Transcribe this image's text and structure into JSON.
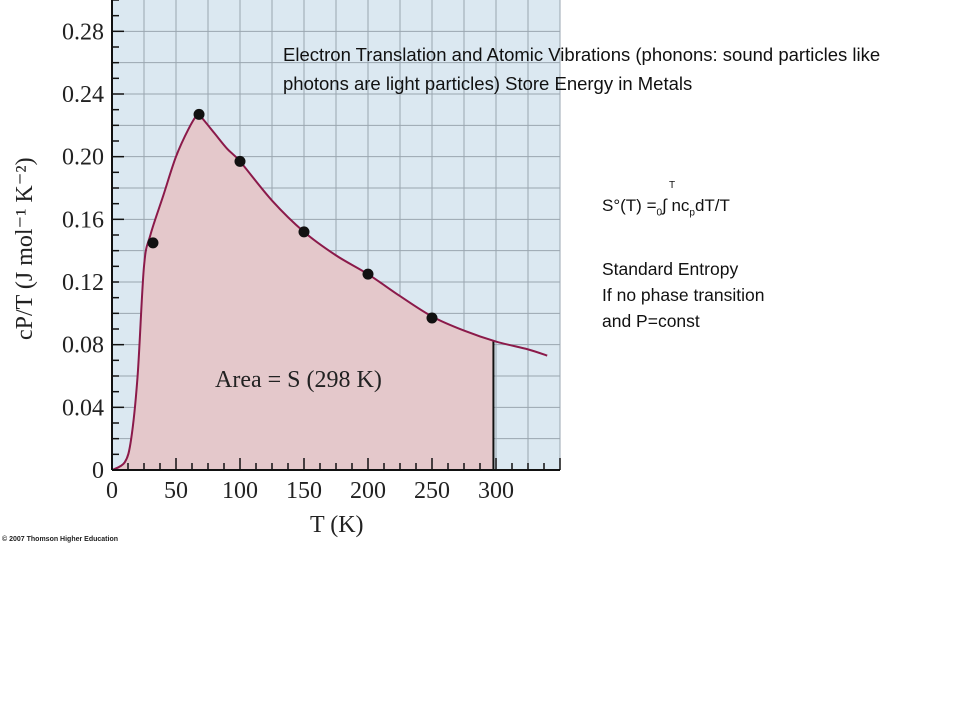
{
  "chart_data": {
    "type": "line",
    "x": [
      0,
      10,
      15,
      20,
      25,
      30,
      40,
      50,
      60,
      67,
      70,
      80,
      90,
      100,
      125,
      150,
      175,
      200,
      225,
      250,
      275,
      300,
      325,
      340
    ],
    "y": [
      0,
      0.005,
      0.02,
      0.06,
      0.13,
      0.15,
      0.175,
      0.2,
      0.218,
      0.227,
      0.225,
      0.215,
      0.205,
      0.197,
      0.172,
      0.152,
      0.137,
      0.125,
      0.111,
      0.098,
      0.089,
      0.082,
      0.077,
      0.073
    ],
    "points": {
      "x": [
        32,
        68,
        100,
        150,
        200,
        250
      ],
      "y": [
        0.145,
        0.227,
        0.197,
        0.152,
        0.125,
        0.097
      ]
    },
    "shaded_range": [
      0,
      298
    ],
    "xlim": [
      0,
      350
    ],
    "ylim": [
      0,
      0.3
    ],
    "xticks": [
      "0",
      "50",
      "100",
      "150",
      "200",
      "250",
      "300"
    ],
    "yticks": [
      "0",
      "0.04",
      "0.08",
      "0.12",
      "0.16",
      "0.20",
      "0.24",
      "0.28"
    ],
    "xlabel": "T (K)",
    "ylabel": "cP/T (J mol⁻¹ K⁻²)",
    "annotation": "Area = S (298 K)",
    "grid": true,
    "colors": {
      "background": "#dbe8f1",
      "grid": "#9aa6b0",
      "curve": "#8b1a4a",
      "fill": "#e4c8cb",
      "point": "#111111"
    }
  },
  "copyright": "© 2007 Thomson Higher Education",
  "headline": "Electron Translation and Atomic Vibrations (phonons: sound particles like photons are light particles) Store Energy in Metals",
  "formula": {
    "upper_limit": "T",
    "left": "S°(T)  =",
    "lower_limit": "0",
    "integral": "∫ nc",
    "sub": "p",
    "right": "dT/T"
  },
  "notes": [
    "Standard Entropy",
    "If no phase transition",
    "and P=const"
  ]
}
